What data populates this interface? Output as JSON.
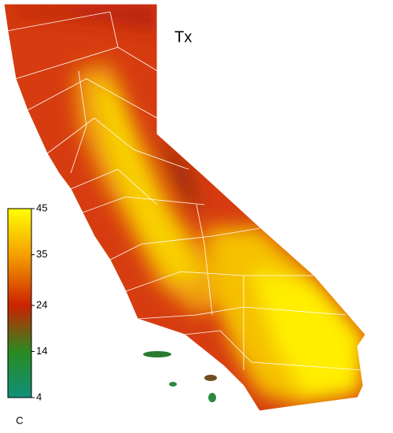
{
  "title": "Tx",
  "legend": {
    "lim": [
      4,
      45
    ],
    "ticks": [
      45,
      35,
      24,
      14,
      4
    ],
    "colors": [
      "#ffff00",
      "#f5a000",
      "#cc2200",
      "#2a8a20",
      "#10907a"
    ],
    "unit": "C"
  }
}
